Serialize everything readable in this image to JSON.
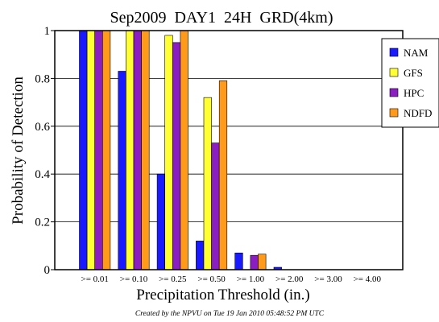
{
  "chart_data": {
    "type": "bar",
    "title": "Sep2009  DAY1  24H  GRD(4km)",
    "xlabel": "Precipitation Threshold (in.)",
    "ylabel": "Probability of Detection",
    "ylim": [
      0,
      1
    ],
    "yticks": [
      "0",
      "0.2",
      "0.4",
      "0.6",
      "0.8",
      "1"
    ],
    "categories": [
      ">= 0.01",
      ">= 0.10",
      ">= 0.25",
      ">= 0.50",
      ">= 1.00",
      ">= 2.00",
      ">= 3.00",
      ">= 4.00"
    ],
    "series": [
      {
        "name": "NAM",
        "color": "#1a1aff",
        "values": [
          1.0,
          0.83,
          0.4,
          0.12,
          0.07,
          0.01,
          0.0,
          0.0
        ]
      },
      {
        "name": "GFS",
        "color": "#ffff33",
        "values": [
          1.0,
          1.0,
          0.98,
          0.72,
          0.0,
          0.0,
          0.0,
          0.0
        ]
      },
      {
        "name": "HPC",
        "color": "#8a1ec0",
        "values": [
          1.0,
          1.0,
          0.95,
          0.53,
          0.06,
          0.0,
          0.0,
          0.0
        ]
      },
      {
        "name": "NDFD",
        "color": "#ff9a1a",
        "values": [
          1.0,
          1.0,
          1.0,
          0.79,
          0.065,
          0.0,
          0.0,
          0.0
        ]
      }
    ],
    "grid": true,
    "legend_position": "right",
    "footer": "Created by the NPVU on Tue 19 Jan 2010 05:48:52 PM UTC"
  }
}
